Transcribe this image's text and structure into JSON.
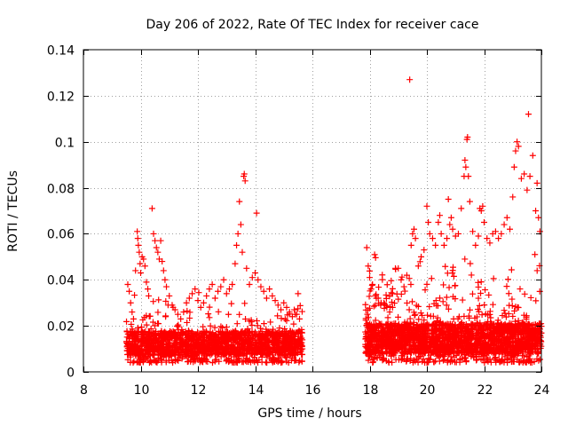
{
  "chart_data": {
    "type": "scatter",
    "title": "Day 206 of 2022, Rate Of TEC Index for receiver cace",
    "xlabel": "GPS time / hours",
    "ylabel": "ROTI / TECUs",
    "xlim": [
      8,
      24
    ],
    "ylim": [
      0,
      0.14
    ],
    "xticks": [
      8,
      10,
      12,
      14,
      16,
      18,
      20,
      22,
      24
    ],
    "xtick_labels": [
      "8",
      "10",
      "12",
      "14",
      "16",
      "18",
      "20",
      "22",
      "24"
    ],
    "yticks": [
      0,
      0.02,
      0.04,
      0.06,
      0.08,
      0.1,
      0.12,
      0.14
    ],
    "ytick_labels": [
      "0",
      "0.02",
      "0.04",
      "0.06",
      "0.08",
      "0.1",
      "0.12",
      "0.14"
    ],
    "grid": true,
    "marker": "+",
    "color": "#ff0000",
    "series": [
      {
        "name": "ROTI",
        "points": [
          [
            9.55,
            0.038
          ],
          [
            9.6,
            0.035
          ],
          [
            9.65,
            0.03
          ],
          [
            9.7,
            0.026
          ],
          [
            9.75,
            0.023
          ],
          [
            9.82,
            0.044
          ],
          [
            9.88,
            0.061
          ],
          [
            9.9,
            0.058
          ],
          [
            9.92,
            0.055
          ],
          [
            9.95,
            0.052
          ],
          [
            9.98,
            0.047
          ],
          [
            10.0,
            0.043
          ],
          [
            10.05,
            0.05
          ],
          [
            10.1,
            0.049
          ],
          [
            10.15,
            0.046
          ],
          [
            10.2,
            0.039
          ],
          [
            10.25,
            0.036
          ],
          [
            10.28,
            0.033
          ],
          [
            10.4,
            0.071
          ],
          [
            10.45,
            0.06
          ],
          [
            10.5,
            0.057
          ],
          [
            10.55,
            0.054
          ],
          [
            10.6,
            0.052
          ],
          [
            10.65,
            0.049
          ],
          [
            10.7,
            0.057
          ],
          [
            10.75,
            0.048
          ],
          [
            10.8,
            0.044
          ],
          [
            10.85,
            0.04
          ],
          [
            10.9,
            0.037
          ],
          [
            11.0,
            0.033
          ],
          [
            11.1,
            0.029
          ],
          [
            11.2,
            0.027
          ],
          [
            11.3,
            0.025
          ],
          [
            11.4,
            0.023
          ],
          [
            11.5,
            0.026
          ],
          [
            11.6,
            0.03
          ],
          [
            11.7,
            0.032
          ],
          [
            11.8,
            0.034
          ],
          [
            11.9,
            0.036
          ],
          [
            12.0,
            0.031
          ],
          [
            12.1,
            0.028
          ],
          [
            12.2,
            0.03
          ],
          [
            12.3,
            0.033
          ],
          [
            12.4,
            0.036
          ],
          [
            12.5,
            0.038
          ],
          [
            12.6,
            0.032
          ],
          [
            12.7,
            0.035
          ],
          [
            12.8,
            0.037
          ],
          [
            12.9,
            0.04
          ],
          [
            13.0,
            0.034
          ],
          [
            13.1,
            0.036
          ],
          [
            13.2,
            0.038
          ],
          [
            13.3,
            0.047
          ],
          [
            13.35,
            0.055
          ],
          [
            13.4,
            0.06
          ],
          [
            13.45,
            0.074
          ],
          [
            13.5,
            0.064
          ],
          [
            13.55,
            0.052
          ],
          [
            13.6,
            0.085
          ],
          [
            13.62,
            0.086
          ],
          [
            13.65,
            0.083
          ],
          [
            13.7,
            0.045
          ],
          [
            13.8,
            0.038
          ],
          [
            13.9,
            0.041
          ],
          [
            14.0,
            0.043
          ],
          [
            14.05,
            0.069
          ],
          [
            14.1,
            0.04
          ],
          [
            14.2,
            0.037
          ],
          [
            14.3,
            0.035
          ],
          [
            14.4,
            0.032
          ],
          [
            14.5,
            0.036
          ],
          [
            14.6,
            0.033
          ],
          [
            14.7,
            0.031
          ],
          [
            14.8,
            0.029
          ],
          [
            14.9,
            0.027
          ],
          [
            15.0,
            0.03
          ],
          [
            15.1,
            0.028
          ],
          [
            15.2,
            0.026
          ],
          [
            15.3,
            0.024
          ],
          [
            15.4,
            0.025
          ],
          [
            15.5,
            0.034
          ],
          [
            15.55,
            0.023
          ],
          [
            15.6,
            0.012
          ],
          [
            15.65,
            0.01
          ],
          [
            17.9,
            0.054
          ],
          [
            17.95,
            0.046
          ],
          [
            18.0,
            0.041
          ],
          [
            18.05,
            0.036
          ],
          [
            18.1,
            0.038
          ],
          [
            18.2,
            0.033
          ],
          [
            18.3,
            0.032
          ],
          [
            18.4,
            0.03
          ],
          [
            18.5,
            0.03
          ],
          [
            18.6,
            0.028
          ],
          [
            18.7,
            0.026
          ],
          [
            18.8,
            0.028
          ],
          [
            18.9,
            0.045
          ],
          [
            19.0,
            0.045
          ],
          [
            19.1,
            0.04
          ],
          [
            19.2,
            0.037
          ],
          [
            19.3,
            0.042
          ],
          [
            19.4,
            0.127
          ],
          [
            19.45,
            0.055
          ],
          [
            19.5,
            0.06
          ],
          [
            19.55,
            0.062
          ],
          [
            19.6,
            0.058
          ],
          [
            19.7,
            0.046
          ],
          [
            19.8,
            0.05
          ],
          [
            19.9,
            0.053
          ],
          [
            20.0,
            0.072
          ],
          [
            20.05,
            0.065
          ],
          [
            20.1,
            0.06
          ],
          [
            20.2,
            0.058
          ],
          [
            20.3,
            0.055
          ],
          [
            20.4,
            0.065
          ],
          [
            20.45,
            0.068
          ],
          [
            20.5,
            0.06
          ],
          [
            20.6,
            0.055
          ],
          [
            20.7,
            0.058
          ],
          [
            20.75,
            0.075
          ],
          [
            20.8,
            0.064
          ],
          [
            20.85,
            0.067
          ],
          [
            20.9,
            0.062
          ],
          [
            21.0,
            0.059
          ],
          [
            21.1,
            0.06
          ],
          [
            21.2,
            0.071
          ],
          [
            21.3,
            0.085
          ],
          [
            21.33,
            0.092
          ],
          [
            21.36,
            0.089
          ],
          [
            21.4,
            0.101
          ],
          [
            21.42,
            0.102
          ],
          [
            21.45,
            0.085
          ],
          [
            21.5,
            0.074
          ],
          [
            21.6,
            0.061
          ],
          [
            21.7,
            0.055
          ],
          [
            21.8,
            0.059
          ],
          [
            21.85,
            0.071
          ],
          [
            21.9,
            0.07
          ],
          [
            21.95,
            0.072
          ],
          [
            22.0,
            0.065
          ],
          [
            22.1,
            0.058
          ],
          [
            22.2,
            0.056
          ],
          [
            22.3,
            0.06
          ],
          [
            22.4,
            0.061
          ],
          [
            22.5,
            0.058
          ],
          [
            22.6,
            0.06
          ],
          [
            22.7,
            0.064
          ],
          [
            22.8,
            0.067
          ],
          [
            22.9,
            0.062
          ],
          [
            23.0,
            0.076
          ],
          [
            23.05,
            0.089
          ],
          [
            23.1,
            0.096
          ],
          [
            23.15,
            0.1
          ],
          [
            23.2,
            0.098
          ],
          [
            23.3,
            0.084
          ],
          [
            23.4,
            0.086
          ],
          [
            23.5,
            0.079
          ],
          [
            23.55,
            0.112
          ],
          [
            23.6,
            0.085
          ],
          [
            23.7,
            0.094
          ],
          [
            23.8,
            0.07
          ],
          [
            23.85,
            0.082
          ],
          [
            23.9,
            0.067
          ],
          [
            23.95,
            0.061
          ]
        ],
        "band": {
          "segments": [
            {
              "x_start": 9.5,
              "x_end": 15.65,
              "y_floor": 0.004,
              "y_median": 0.012,
              "y_ceiling": 0.03,
              "count": 1700
            },
            {
              "x_start": 17.85,
              "x_end": 24.0,
              "y_floor": 0.004,
              "y_median": 0.014,
              "y_ceiling": 0.045,
              "count": 2200
            }
          ]
        }
      }
    ]
  }
}
